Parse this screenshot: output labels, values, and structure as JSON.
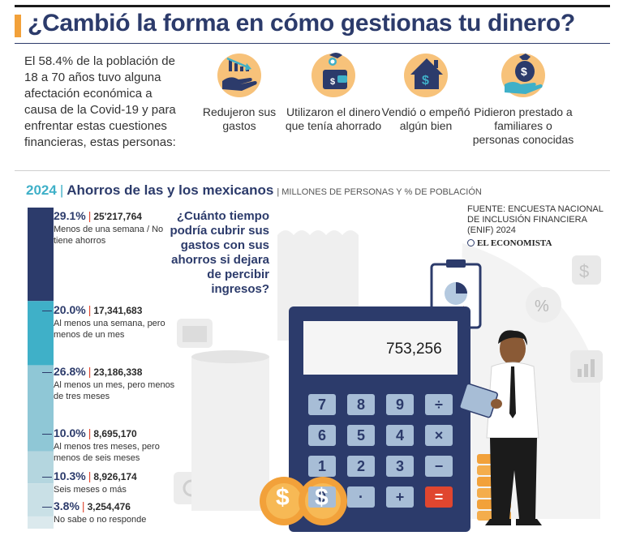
{
  "title": "¿Cambió la forma en cómo gestionas tu dinero?",
  "intro": "El 58.4% de la población de 18 a 70 años tuvo alguna afectación económica a causa de la Covid-19 y para enfrentar estas cuestiones financieras, estas personas:",
  "actions": [
    {
      "label": "Redujeron sus gastos",
      "icon": "hand-chart-icon"
    },
    {
      "label": "Utilizaron el dinero que tenía ahorrado",
      "icon": "wallet-icon"
    },
    {
      "label": "Vendió o empeñó algún bien",
      "icon": "house-dollar-icon"
    },
    {
      "label": "Pidieron prestado a familiares o personas conocidas",
      "icon": "money-bag-hand-icon"
    }
  ],
  "subheader": {
    "year": "2024",
    "pipe": "|",
    "title": "Ahorros de las y los mexicanos",
    "units": "| MILLONES DE PERSONAS Y % DE POBLACIÓN"
  },
  "question": "¿Cuánto tiempo podría cubrir sus gastos con sus ahorros si dejara de percibir ingresos?",
  "source": "FUENTE: ENCUESTA NACIONAL DE INCLUSIÓN FINANCIERA (ENIF) 2024",
  "brand": "EL ECONOMISTA",
  "calculator": {
    "display": "753,256",
    "keys": [
      "7",
      "8",
      "9",
      "÷",
      "6",
      "5",
      "4",
      "×",
      "1",
      "2",
      "3",
      "−",
      "0",
      "·",
      "+",
      "="
    ]
  },
  "coin_symbol": "$",
  "chart_data": {
    "type": "bar",
    "stacked": true,
    "orientation": "vertical",
    "categories": [
      "Menos de una semana / No tiene ahorros",
      "Al menos una semana, pero menos de un mes",
      "Al menos un mes, pero menos de tres meses",
      "Al menos tres meses, pero menos de seis meses",
      "Seis meses o más",
      "No sabe o no responde"
    ],
    "percent": [
      29.1,
      20.0,
      26.8,
      10.0,
      10.3,
      3.8
    ],
    "percent_labels": [
      "29.1%",
      "20.0%",
      "26.8%",
      "10.0%",
      "10.3%",
      "3.8%"
    ],
    "values": [
      25217764,
      17341683,
      23186338,
      8695170,
      8926174,
      3254476
    ],
    "value_labels": [
      "25'217,764",
      "17,341,683",
      "23,186,338",
      "8,695,170",
      "8,926,174",
      "3,254,476"
    ],
    "colors": [
      "#2c3b6b",
      "#3fb0c8",
      "#8fc7d6",
      "#b4d6df",
      "#c9e0e6",
      "#dbe9ed"
    ]
  }
}
